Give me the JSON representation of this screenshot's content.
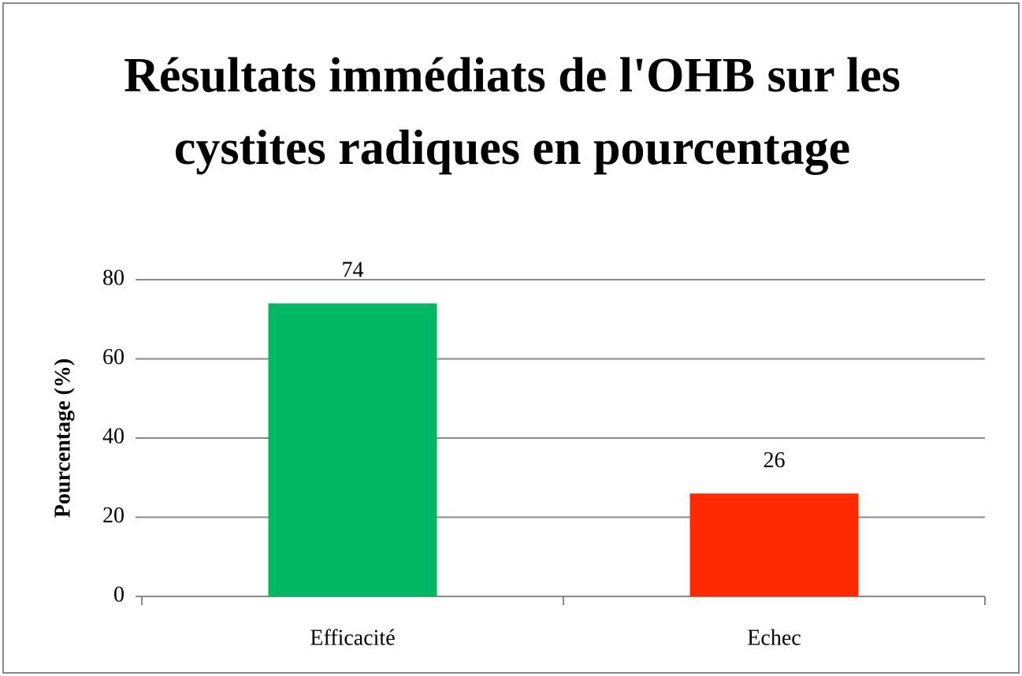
{
  "chart_data": {
    "type": "bar",
    "title": "Résultats immédiats de l'OHB sur les cystites radiques en pourcentage",
    "y_label": "Pourcentage (%)",
    "categories": [
      "Efficacité",
      "Echec"
    ],
    "values": [
      74,
      26
    ],
    "colors": [
      "#00b863",
      "#ff2a00"
    ],
    "ylim": [
      0,
      80
    ],
    "yticks": [
      0,
      20,
      40,
      60,
      80
    ],
    "grid": true
  }
}
